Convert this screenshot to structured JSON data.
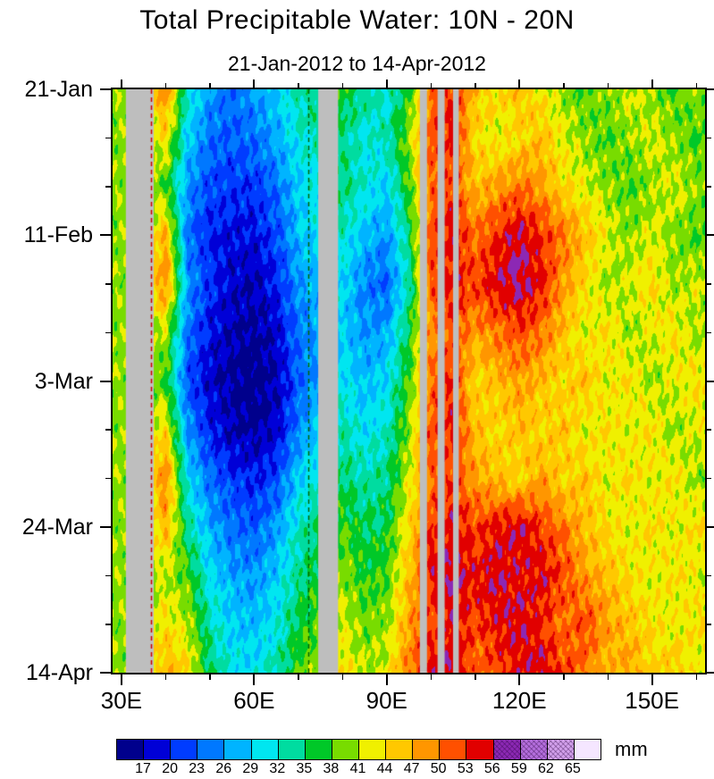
{
  "title": "Total Precipitable Water: 10N - 20N",
  "subtitle": "21-Jan-2012 to 14-Apr-2012",
  "chart_data": {
    "type": "heatmap",
    "description": "Hovmoller diagram of total precipitable water (mm) averaged 10N-20N; time runs down the vertical axis from 21-Jan-2012 to 14-Apr-2012, longitude across the horizontal axis (~28E to 162E). Gray vertical bands are missing data (land). Low values (blue, 16-26 mm) dominate 45-75E peaking early March; persistent high values (red/purple, 50-57 mm) lie along 99-107E; high-value episodes (50-57 mm) occur near 110-130E in mid-February and from late March onward; greens/yellows (38-48 mm) cover 135-160E.",
    "x_axis": {
      "tick_labels": [
        "30E",
        "60E",
        "90E",
        "120E",
        "150E"
      ],
      "tick_lons": [
        30,
        60,
        90,
        120,
        150
      ],
      "lon_range": [
        28,
        162
      ],
      "minor_tick_step": 10
    },
    "y_axis": {
      "tick_labels": [
        "21-Jan",
        "11-Feb",
        "3-Mar",
        "24-Mar",
        "14-Apr"
      ],
      "tick_days": [
        0,
        21,
        42,
        63,
        84
      ],
      "day_range": [
        0,
        84
      ],
      "minor_tick_step": 7
    },
    "colorbar": {
      "unit": "mm",
      "boundaries": [
        17,
        20,
        23,
        26,
        29,
        32,
        35,
        38,
        41,
        44,
        47,
        50,
        53,
        56,
        59,
        62,
        65
      ],
      "colors": [
        "#00008C",
        "#0000D7",
        "#003CFF",
        "#0078FF",
        "#00B4FF",
        "#00E6F0",
        "#00DCA0",
        "#00C828",
        "#78DC00",
        "#F0F000",
        "#FFC800",
        "#FF9600",
        "#FF5000",
        "#E10000",
        "#8C28B4",
        "#B46EDC",
        "#D2A0EB",
        "#F5E6FF"
      ],
      "hatched_from_value": 56,
      "missing_color": "#BEBEBE"
    },
    "grid": {
      "lons": [
        30,
        35,
        40,
        45,
        50,
        55,
        60,
        65,
        70,
        75,
        80,
        85,
        90,
        95,
        100,
        105,
        110,
        115,
        120,
        125,
        130,
        135,
        140,
        145,
        150,
        155,
        160
      ],
      "days": [
        0,
        7,
        14,
        21,
        28,
        35,
        42,
        49,
        56,
        63,
        70,
        77,
        84
      ],
      "values_mm": [
        [
          40,
          40,
          50,
          32,
          26,
          24,
          26,
          29,
          33,
          35,
          37,
          34,
          31,
          37,
          50,
          53,
          46,
          44,
          46,
          43,
          40,
          38,
          40,
          42,
          40,
          38,
          40
        ],
        [
          40,
          40,
          44,
          29,
          24,
          23,
          24,
          27,
          31,
          33,
          34,
          31,
          33,
          40,
          52,
          54,
          44,
          42,
          44,
          46,
          42,
          40,
          38,
          40,
          42,
          40,
          38
        ],
        [
          40,
          40,
          38,
          26,
          22,
          21,
          21,
          24,
          29,
          32,
          35,
          32,
          29,
          38,
          50,
          52,
          46,
          48,
          50,
          48,
          44,
          42,
          40,
          38,
          40,
          42,
          40
        ],
        [
          40,
          40,
          47,
          24,
          20,
          19,
          19,
          22,
          28,
          30,
          32,
          28,
          26,
          35,
          52,
          55,
          50,
          53,
          56,
          53,
          50,
          46,
          42,
          40,
          42,
          40,
          38
        ],
        [
          40,
          40,
          50,
          26,
          21,
          18,
          17,
          20,
          26,
          28,
          30,
          25,
          23,
          33,
          51,
          54,
          52,
          55,
          57,
          54,
          48,
          44,
          40,
          42,
          44,
          40,
          42
        ],
        [
          40,
          40,
          41,
          24,
          19,
          17,
          16,
          18,
          24,
          27,
          29,
          26,
          27,
          36,
          49,
          52,
          48,
          50,
          52,
          50,
          46,
          42,
          44,
          40,
          42,
          44,
          40
        ],
        [
          40,
          40,
          38,
          22,
          18,
          16,
          15,
          17,
          23,
          27,
          31,
          28,
          30,
          38,
          50,
          53,
          44,
          46,
          48,
          46,
          44,
          46,
          42,
          44,
          40,
          42,
          44
        ],
        [
          40,
          40,
          44,
          26,
          20,
          17,
          16,
          18,
          25,
          29,
          33,
          30,
          32,
          40,
          52,
          54,
          46,
          44,
          46,
          44,
          46,
          42,
          44,
          42,
          44,
          40,
          42
        ],
        [
          40,
          40,
          50,
          30,
          24,
          21,
          20,
          22,
          29,
          32,
          35,
          33,
          34,
          42,
          50,
          52,
          48,
          46,
          44,
          48,
          44,
          46,
          42,
          44,
          42,
          44,
          40
        ],
        [
          40,
          40,
          47,
          34,
          27,
          24,
          23,
          26,
          32,
          35,
          38,
          35,
          36,
          44,
          53,
          55,
          52,
          54,
          56,
          52,
          50,
          46,
          44,
          42,
          44,
          42,
          44
        ],
        [
          40,
          40,
          41,
          38,
          30,
          27,
          26,
          29,
          34,
          37,
          40,
          37,
          38,
          46,
          54,
          56,
          54,
          56,
          54,
          55,
          52,
          48,
          46,
          44,
          42,
          44,
          42
        ],
        [
          40,
          40,
          44,
          41,
          33,
          29,
          28,
          31,
          36,
          39,
          42,
          39,
          40,
          48,
          52,
          55,
          52,
          54,
          56,
          53,
          50,
          52,
          48,
          46,
          44,
          42,
          44
        ],
        [
          40,
          40,
          47,
          44,
          35,
          31,
          30,
          33,
          38,
          41,
          44,
          41,
          42,
          50,
          54,
          56,
          50,
          52,
          54,
          56,
          52,
          50,
          46,
          48,
          44,
          46,
          42
        ]
      ]
    },
    "missing_lon_bands": [
      [
        31.0,
        37.3
      ],
      [
        74.5,
        79.0
      ],
      [
        97.5,
        99.1
      ],
      [
        101.5,
        103.1
      ],
      [
        105.0,
        106.3
      ]
    ],
    "dashed_lines": [
      {
        "lon": 36.6,
        "color": "#CC0000"
      },
      {
        "lon": 72.3,
        "color": "#006600"
      }
    ]
  }
}
